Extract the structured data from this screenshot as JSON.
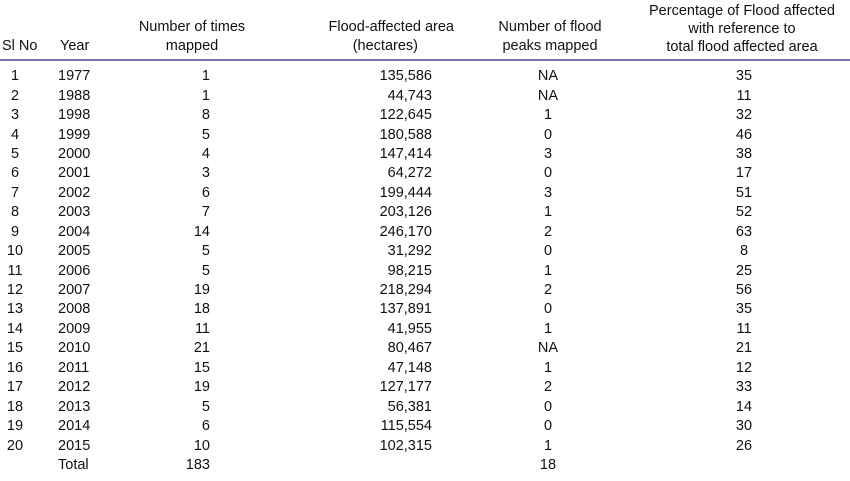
{
  "headers": {
    "sl_no": "Sl No",
    "year": "Year",
    "times_mapped": [
      "Number of times",
      "mapped"
    ],
    "area": [
      "Flood-affected area",
      "(hectares)"
    ],
    "peaks": [
      "Number of flood",
      "peaks mapped"
    ],
    "percentage": [
      "Percentage of Flood affected",
      "with reference to",
      "total flood affected area"
    ]
  },
  "rows": [
    {
      "sl": "1",
      "year": "1977",
      "mapped": "1",
      "area": "135,586",
      "peaks": "NA",
      "pct": "35"
    },
    {
      "sl": "2",
      "year": "1988",
      "mapped": "1",
      "area": "44,743",
      "peaks": "NA",
      "pct": "11"
    },
    {
      "sl": "3",
      "year": "1998",
      "mapped": "8",
      "area": "122,645",
      "peaks": "1",
      "pct": "32"
    },
    {
      "sl": "4",
      "year": "1999",
      "mapped": "5",
      "area": "180,588",
      "peaks": "0",
      "pct": "46"
    },
    {
      "sl": "5",
      "year": "2000",
      "mapped": "4",
      "area": "147,414",
      "peaks": "3",
      "pct": "38"
    },
    {
      "sl": "6",
      "year": "2001",
      "mapped": "3",
      "area": "64,272",
      "peaks": "0",
      "pct": "17"
    },
    {
      "sl": "7",
      "year": "2002",
      "mapped": "6",
      "area": "199,444",
      "peaks": "3",
      "pct": "51"
    },
    {
      "sl": "8",
      "year": "2003",
      "mapped": "7",
      "area": "203,126",
      "peaks": "1",
      "pct": "52"
    },
    {
      "sl": "9",
      "year": "2004",
      "mapped": "14",
      "area": "246,170",
      "peaks": "2",
      "pct": "63"
    },
    {
      "sl": "10",
      "year": "2005",
      "mapped": "5",
      "area": "31,292",
      "peaks": "0",
      "pct": "8"
    },
    {
      "sl": "11",
      "year": "2006",
      "mapped": "5",
      "area": "98,215",
      "peaks": "1",
      "pct": "25"
    },
    {
      "sl": "12",
      "year": "2007",
      "mapped": "19",
      "area": "218,294",
      "peaks": "2",
      "pct": "56"
    },
    {
      "sl": "13",
      "year": "2008",
      "mapped": "18",
      "area": "137,891",
      "peaks": "0",
      "pct": "35"
    },
    {
      "sl": "14",
      "year": "2009",
      "mapped": "11",
      "area": "41,955",
      "peaks": "1",
      "pct": "11"
    },
    {
      "sl": "15",
      "year": "2010",
      "mapped": "21",
      "area": "80,467",
      "peaks": "NA",
      "pct": "21"
    },
    {
      "sl": "16",
      "year": "2011",
      "mapped": "15",
      "area": "47,148",
      "peaks": "1",
      "pct": "12"
    },
    {
      "sl": "17",
      "year": "2012",
      "mapped": "19",
      "area": "127,177",
      "peaks": "2",
      "pct": "33"
    },
    {
      "sl": "18",
      "year": "2013",
      "mapped": "5",
      "area": "56,381",
      "peaks": "0",
      "pct": "14"
    },
    {
      "sl": "19",
      "year": "2014",
      "mapped": "6",
      "area": "115,554",
      "peaks": "0",
      "pct": "30"
    },
    {
      "sl": "20",
      "year": "2015",
      "mapped": "10",
      "area": "102,315",
      "peaks": "1",
      "pct": "26"
    }
  ],
  "total": {
    "label": "Total",
    "mapped": "183",
    "area": "",
    "peaks": "18",
    "pct": ""
  },
  "colors": {
    "header_rule": "#7b6fb0",
    "text": "#111111"
  }
}
